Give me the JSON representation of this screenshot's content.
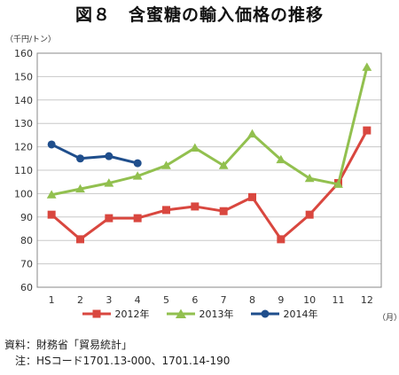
{
  "title": "図８　含蜜糖の輸入価格の推移",
  "y_unit": "（千円/トン）",
  "x_unit": "（月）",
  "notes": [
    "資料：財務省「貿易統計」",
    "　注：HSコード1701.13-000、1701.14-190"
  ],
  "chart_data": {
    "type": "line",
    "categories": [
      "1",
      "2",
      "3",
      "4",
      "5",
      "6",
      "7",
      "8",
      "9",
      "10",
      "11",
      "12"
    ],
    "ylim": [
      60,
      160
    ],
    "yticks": [
      60,
      70,
      80,
      90,
      100,
      110,
      120,
      130,
      140,
      150,
      160
    ],
    "grid": true,
    "legend_position": "bottom",
    "series": [
      {
        "name": "2012年",
        "color": "#d9473f",
        "marker": "square",
        "values": [
          91,
          80.5,
          89.5,
          89.5,
          93,
          94.5,
          92.5,
          98.5,
          80.5,
          91,
          104.5,
          127
        ]
      },
      {
        "name": "2013年",
        "color": "#92c04f",
        "marker": "triangle",
        "values": [
          99.5,
          102,
          104.5,
          107.5,
          112,
          119.5,
          112,
          125.5,
          114.5,
          106.5,
          104,
          154
        ]
      },
      {
        "name": "2014年",
        "color": "#1f4e8c",
        "marker": "circle",
        "values": [
          121,
          115,
          116,
          113,
          null,
          null,
          null,
          null,
          null,
          null,
          null,
          null
        ]
      }
    ]
  }
}
